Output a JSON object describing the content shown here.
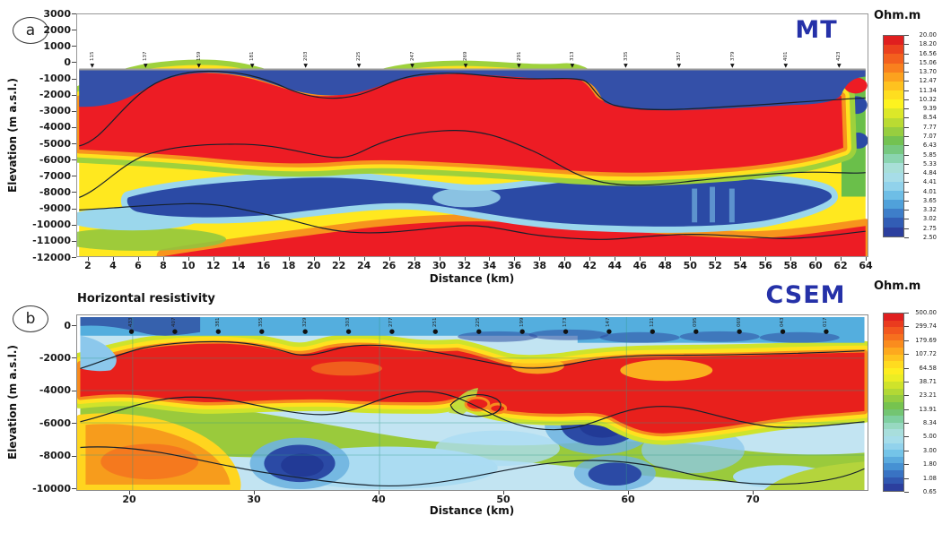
{
  "figure": {
    "panel_a": {
      "badge": "a",
      "method_label": "MT",
      "ylabel": "Elevation (m a.s.l.)",
      "xlabel": "Distance (km)",
      "y_ticks": [
        "3000",
        "2000",
        "1000",
        "0",
        "-1000",
        "-2000",
        "-3000",
        "-4000",
        "-5000",
        "-6000",
        "-7000",
        "-8000",
        "-9000",
        "-10000",
        "-11000",
        "-12000"
      ],
      "x_ticks": [
        "2",
        "4",
        "6",
        "8",
        "10",
        "12",
        "14",
        "16",
        "18",
        "20",
        "22",
        "24",
        "26",
        "28",
        "30",
        "32",
        "34",
        "36",
        "38",
        "40",
        "42",
        "44",
        "46",
        "48",
        "50",
        "52",
        "54",
        "56",
        "58",
        "60",
        "62",
        "64"
      ],
      "stations": [
        "115",
        "137",
        "159",
        "181",
        "203",
        "225",
        "247",
        "269",
        "291",
        "313",
        "335",
        "357",
        "379",
        "401",
        "423"
      ],
      "colorbar": {
        "title": "Ohm.m",
        "labels": [
          "20.00",
          "18.20",
          "16.56",
          "15.06",
          "13.70",
          "12.47",
          "11.34",
          "10.32",
          "9.39",
          "8.54",
          "7.77",
          "7.07",
          "6.43",
          "5.85",
          "5.33",
          "4.84",
          "4.41",
          "4.01",
          "3.65",
          "3.32",
          "3.02",
          "2.75",
          "2.50"
        ]
      }
    },
    "panel_b": {
      "badge": "b",
      "method_label": "CSEM",
      "title": "Horizontal resistivity",
      "ylabel": "Elevation (m a.s.l.)",
      "xlabel": "Distance (km)",
      "y_ticks": [
        "0",
        "-2000",
        "-4000",
        "-6000",
        "-8000",
        "-10000"
      ],
      "x_ticks": [
        "20",
        "30",
        "40",
        "50",
        "60",
        "70"
      ],
      "stations": [
        "433",
        "407",
        "381",
        "355",
        "329",
        "303",
        "277",
        "251",
        "225",
        "199",
        "173",
        "147",
        "121",
        "095",
        "069",
        "043",
        "017"
      ],
      "colorbar": {
        "title": "Ohm.m",
        "labels": [
          "500.00",
          "299.74",
          "179.69",
          "107.72",
          "64.58",
          "38.71",
          "23.21",
          "13.91",
          "8.34",
          "5.00",
          "3.00",
          "1.80",
          "1.08",
          "0.65"
        ]
      }
    },
    "colors": {
      "method_label_blue": "#2531a8",
      "contour_line": "#16212c",
      "surface_line": "#9a9a9a",
      "station_marker": "#111111",
      "colorbar_stops": [
        "#e01f1f",
        "#f04e1e",
        "#f8791e",
        "#fda91e",
        "#ffd51f",
        "#fdf31f",
        "#cfe32b",
        "#9ed13c",
        "#6cbf54",
        "#7ecf9f",
        "#a8dfd8",
        "#a6dcee",
        "#74c4e8",
        "#4a9bd8",
        "#3569be",
        "#2c3f9e"
      ]
    }
  },
  "chart_data": [
    {
      "type": "heatmap",
      "panel": "a",
      "method": "MT",
      "quantity": "Resistivity (Ohm.m)",
      "xlabel": "Distance (km)",
      "ylabel": "Elevation (m a.s.l.)",
      "xlim": [
        1,
        64
      ],
      "ylim": [
        -12000,
        3000
      ],
      "x_tick_values": [
        2,
        4,
        6,
        8,
        10,
        12,
        14,
        16,
        18,
        20,
        22,
        24,
        26,
        28,
        30,
        32,
        34,
        36,
        38,
        40,
        42,
        44,
        46,
        48,
        50,
        52,
        54,
        56,
        58,
        60,
        62,
        64
      ],
      "y_tick_values": [
        3000,
        2000,
        1000,
        0,
        -1000,
        -2000,
        -3000,
        -4000,
        -5000,
        -6000,
        -7000,
        -8000,
        -9000,
        -10000,
        -11000,
        -12000
      ],
      "colorbar": {
        "title": "Ohm.m",
        "levels": [
          20.0,
          18.2,
          16.56,
          15.06,
          13.7,
          12.47,
          11.34,
          10.32,
          9.39,
          8.54,
          7.77,
          7.07,
          6.43,
          5.85,
          5.33,
          4.84,
          4.41,
          4.01,
          3.65,
          3.32,
          3.02,
          2.75,
          2.5
        ],
        "high_color": "red",
        "low_color": "blue"
      },
      "station_numbers": [
        115,
        137,
        159,
        181,
        203,
        225,
        247,
        269,
        291,
        313,
        335,
        357,
        379,
        401,
        423
      ],
      "grid": false,
      "legend_position": "right colorbar",
      "description": "MT resistivity section: thin conductive (blue) layer just below the surface; thick resistive (red ~20 Ohm.m) body from about -1000 to -6000 m; deep conductive (blue) band between about -6000 and -9000 m; resistive (red/yellow) material again below -9000 m. Three black contour horizons and 15 numbered surface stations."
    },
    {
      "type": "heatmap",
      "panel": "b",
      "method": "CSEM",
      "quantity": "Horizontal resistivity (Ohm.m)",
      "xlabel": "Distance (km)",
      "ylabel": "Elevation (m a.s.l.)",
      "xlim": [
        15,
        79
      ],
      "ylim": [
        -10000,
        500
      ],
      "x_tick_values": [
        20,
        30,
        40,
        50,
        60,
        70
      ],
      "y_tick_values": [
        0,
        -2000,
        -4000,
        -6000,
        -8000,
        -10000
      ],
      "colorbar": {
        "title": "Ohm.m",
        "levels": [
          500.0,
          299.74,
          179.69,
          107.72,
          64.58,
          38.71,
          23.21,
          13.91,
          8.34,
          5.0,
          3.0,
          1.8,
          1.08,
          0.65
        ],
        "high_color": "red",
        "low_color": "blue"
      },
      "station_numbers": [
        433,
        407,
        381,
        355,
        329,
        303,
        277,
        251,
        225,
        199,
        173,
        147,
        121,
        95,
        69,
        43,
        17
      ],
      "grid": true,
      "gridlines": {
        "vertical_km": [
          20,
          40,
          60
        ],
        "horizontal_m": [
          -2000,
          -4000,
          -6000,
          -8000
        ]
      },
      "legend_position": "right colorbar",
      "description": "CSEM horizontal-resistivity section: thin conductive (blue) surface layer over an undulating resistive (red, up to 500 Ohm.m) band between about -1000 and -5000 m, pinched near 42-47 km; below, resistivity drops (yellow-green-cyan) with conductive (dark blue) pockets near 33-37 km and 56-62 km around -7000 to -9000 m, and a resistive orange zone at lower left (17-30 km). Black contour horizons and 17 numbered surface stations."
    }
  ]
}
